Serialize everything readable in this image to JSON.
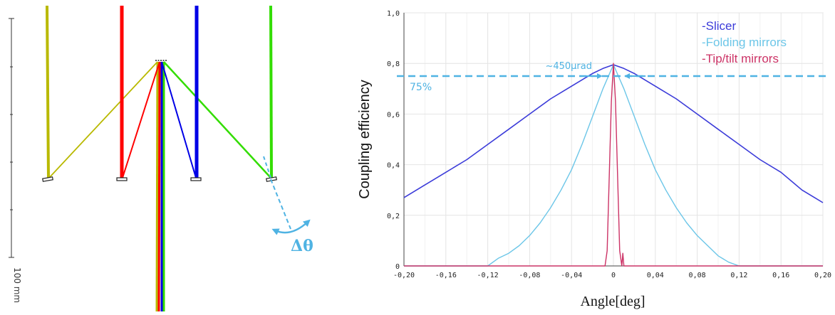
{
  "diagram": {
    "scale_label": "100 mm",
    "delta_label": "Δθ",
    "colors": {
      "beam_yellow": "#b9b900",
      "beam_red": "#ff0000",
      "beam_blue": "#0000e6",
      "beam_green": "#33dd00",
      "annotation": "#4fb3e3"
    }
  },
  "chart_data": {
    "type": "line",
    "title": "",
    "xlabel": "Angle[deg]",
    "ylabel": "Coupling efficiency",
    "xlim": [
      -0.2,
      0.2
    ],
    "ylim": [
      0,
      1.0
    ],
    "x_ticks": [
      "-0,20",
      "-0,16",
      "-0,12",
      "-0,08",
      "-0,04",
      "0",
      "0,04",
      "0,08",
      "0,12",
      "0,16",
      "0,20"
    ],
    "y_ticks": [
      "0",
      "0,2",
      "0,4",
      "0,6",
      "0,8",
      "1,0"
    ],
    "grid": true,
    "legend_position": "top-right",
    "series": [
      {
        "name": "-Slicer",
        "color": "#3b3bd9",
        "x": [
          -0.2,
          -0.18,
          -0.16,
          -0.14,
          -0.12,
          -0.1,
          -0.08,
          -0.06,
          -0.04,
          -0.02,
          -0.01,
          0,
          0.01,
          0.02,
          0.04,
          0.06,
          0.08,
          0.1,
          0.12,
          0.14,
          0.16,
          0.18,
          0.2
        ],
        "y": [
          0.27,
          0.32,
          0.37,
          0.42,
          0.48,
          0.54,
          0.6,
          0.66,
          0.71,
          0.76,
          0.78,
          0.795,
          0.78,
          0.76,
          0.71,
          0.66,
          0.6,
          0.54,
          0.48,
          0.42,
          0.37,
          0.3,
          0.25
        ]
      },
      {
        "name": "-Folding mirrors",
        "color": "#6cc6e8",
        "x": [
          -0.2,
          -0.12,
          -0.11,
          -0.1,
          -0.09,
          -0.08,
          -0.07,
          -0.06,
          -0.05,
          -0.04,
          -0.03,
          -0.02,
          -0.01,
          0,
          0.01,
          0.02,
          0.03,
          0.04,
          0.05,
          0.06,
          0.07,
          0.08,
          0.09,
          0.1,
          0.11,
          0.12,
          0.2
        ],
        "y": [
          0.0,
          0.0,
          0.03,
          0.05,
          0.08,
          0.12,
          0.17,
          0.23,
          0.3,
          0.38,
          0.48,
          0.59,
          0.7,
          0.795,
          0.7,
          0.59,
          0.48,
          0.38,
          0.3,
          0.23,
          0.17,
          0.12,
          0.08,
          0.04,
          0.015,
          0.0,
          0.0
        ]
      },
      {
        "name": "-Tip/tilt mirrors",
        "color": "#cc3366",
        "x": [
          -0.2,
          -0.008,
          -0.006,
          -0.004,
          -0.002,
          0,
          0.002,
          0.004,
          0.006,
          0.008,
          0.009,
          0.01,
          0.012,
          0.2
        ],
        "y": [
          0.0,
          0.0,
          0.06,
          0.35,
          0.65,
          0.8,
          0.65,
          0.35,
          0.06,
          0.0,
          0.05,
          0.0,
          0.0,
          0.0
        ]
      }
    ],
    "annotations": {
      "threshold_label": "75%",
      "threshold_value": 0.75,
      "width_label": "~450µrad",
      "width_range": [
        -0.013,
        0.013
      ]
    }
  }
}
